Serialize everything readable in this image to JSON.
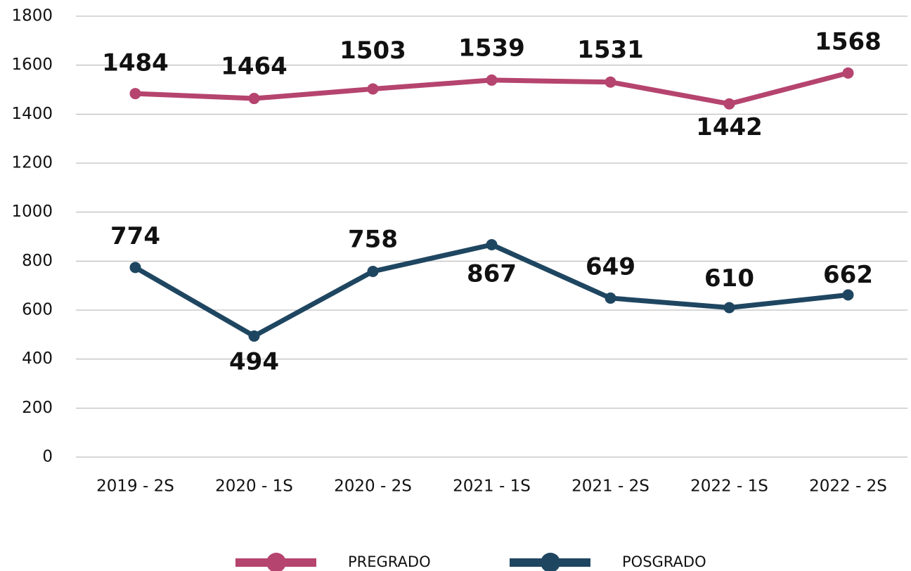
{
  "chart_data": {
    "type": "line",
    "categories": [
      "2019 - 2S",
      "2020 - 1S",
      "2020 - 2S",
      "2021 - 1S",
      "2021 - 2S",
      "2022 - 1S",
      "2022 - 2S"
    ],
    "series": [
      {
        "name": "PREGRADO",
        "color": "#b5446e",
        "values": [
          1484,
          1464,
          1503,
          1539,
          1531,
          1442,
          1568
        ]
      },
      {
        "name": "POSGRADO",
        "color": "#1f4661",
        "values": [
          774,
          494,
          758,
          867,
          649,
          610,
          662
        ]
      }
    ],
    "ylim": [
      0,
      1800
    ],
    "yticks": [
      0,
      200,
      400,
      600,
      800,
      1000,
      1200,
      1400,
      1600,
      1800
    ],
    "grid": true,
    "legend": "bottom"
  }
}
